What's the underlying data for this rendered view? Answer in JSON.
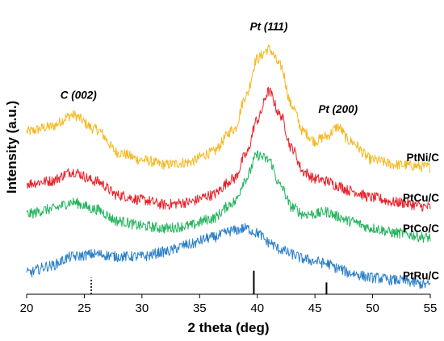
{
  "chart_data": {
    "type": "line",
    "title": "",
    "xlabel": "2 theta (deg)",
    "ylabel": "Intensity (a.u.)",
    "xlim": [
      20,
      55
    ],
    "xticks": [
      "20",
      "25",
      "30",
      "35",
      "40",
      "45",
      "50",
      "55"
    ],
    "grid": false,
    "series": [
      {
        "name": "PtNi/C",
        "color": "#f5b820",
        "points": [
          [
            20,
            0.65
          ],
          [
            22,
            0.67
          ],
          [
            24,
            0.72
          ],
          [
            26,
            0.66
          ],
          [
            28,
            0.56
          ],
          [
            30,
            0.53
          ],
          [
            32,
            0.51
          ],
          [
            34,
            0.52
          ],
          [
            36,
            0.56
          ],
          [
            38,
            0.66
          ],
          [
            39,
            0.8
          ],
          [
            40,
            0.96
          ],
          [
            41,
            1.0
          ],
          [
            42,
            0.93
          ],
          [
            43,
            0.76
          ],
          [
            44,
            0.65
          ],
          [
            45,
            0.61
          ],
          [
            46,
            0.63
          ],
          [
            47,
            0.67
          ],
          [
            48,
            0.61
          ],
          [
            50,
            0.53
          ],
          [
            52,
            0.51
          ],
          [
            55,
            0.5
          ]
        ]
      },
      {
        "name": "PtCu/C",
        "color": "#e8222a",
        "points": [
          [
            20,
            0.43
          ],
          [
            22,
            0.44
          ],
          [
            24,
            0.48
          ],
          [
            26,
            0.44
          ],
          [
            28,
            0.38
          ],
          [
            30,
            0.36
          ],
          [
            32,
            0.34
          ],
          [
            34,
            0.35
          ],
          [
            36,
            0.38
          ],
          [
            38,
            0.45
          ],
          [
            39,
            0.55
          ],
          [
            40,
            0.7
          ],
          [
            41,
            0.82
          ],
          [
            42,
            0.72
          ],
          [
            43,
            0.58
          ],
          [
            44,
            0.48
          ],
          [
            45,
            0.45
          ],
          [
            46,
            0.44
          ],
          [
            47,
            0.42
          ],
          [
            48,
            0.4
          ],
          [
            50,
            0.37
          ],
          [
            52,
            0.35
          ],
          [
            55,
            0.33
          ]
        ]
      },
      {
        "name": "PtCo/C",
        "color": "#22b35c",
        "points": [
          [
            20,
            0.3
          ],
          [
            22,
            0.32
          ],
          [
            24,
            0.35
          ],
          [
            26,
            0.32
          ],
          [
            28,
            0.27
          ],
          [
            30,
            0.25
          ],
          [
            32,
            0.24
          ],
          [
            34,
            0.25
          ],
          [
            36,
            0.28
          ],
          [
            38,
            0.35
          ],
          [
            39,
            0.45
          ],
          [
            40,
            0.55
          ],
          [
            41,
            0.53
          ],
          [
            42,
            0.42
          ],
          [
            43,
            0.33
          ],
          [
            44,
            0.3
          ],
          [
            45,
            0.3
          ],
          [
            46,
            0.31
          ],
          [
            47,
            0.29
          ],
          [
            48,
            0.27
          ],
          [
            50,
            0.24
          ],
          [
            52,
            0.22
          ],
          [
            55,
            0.2
          ]
        ]
      },
      {
        "name": "PtRu/C",
        "color": "#2a7fc8",
        "points": [
          [
            20,
            0.05
          ],
          [
            22,
            0.08
          ],
          [
            24,
            0.12
          ],
          [
            26,
            0.13
          ],
          [
            28,
            0.12
          ],
          [
            30,
            0.12
          ],
          [
            32,
            0.14
          ],
          [
            34,
            0.17
          ],
          [
            36,
            0.2
          ],
          [
            38,
            0.23
          ],
          [
            39,
            0.24
          ],
          [
            40,
            0.22
          ],
          [
            41,
            0.18
          ],
          [
            42,
            0.15
          ],
          [
            43,
            0.13
          ],
          [
            44,
            0.11
          ],
          [
            45,
            0.1
          ],
          [
            46,
            0.09
          ],
          [
            47,
            0.07
          ],
          [
            48,
            0.05
          ],
          [
            50,
            0.03
          ],
          [
            52,
            0.02
          ],
          [
            55,
            0.0
          ]
        ]
      }
    ],
    "peak_annotations": [
      {
        "label": "C (002)",
        "x": 24.5,
        "y": 0.79
      },
      {
        "label": "Pt (111)",
        "x": 41.0,
        "y": 1.08
      },
      {
        "label": "Pt (200)",
        "x": 47.0,
        "y": 0.73
      }
    ],
    "reference_lines": [
      {
        "x": 25.6,
        "style": "dotted",
        "height": 0.07
      },
      {
        "x": 39.7,
        "style": "solid",
        "height": 0.1
      },
      {
        "x": 46.0,
        "style": "solid",
        "height": 0.05
      }
    ],
    "ylim": [
      -0.04,
      1.14
    ]
  }
}
